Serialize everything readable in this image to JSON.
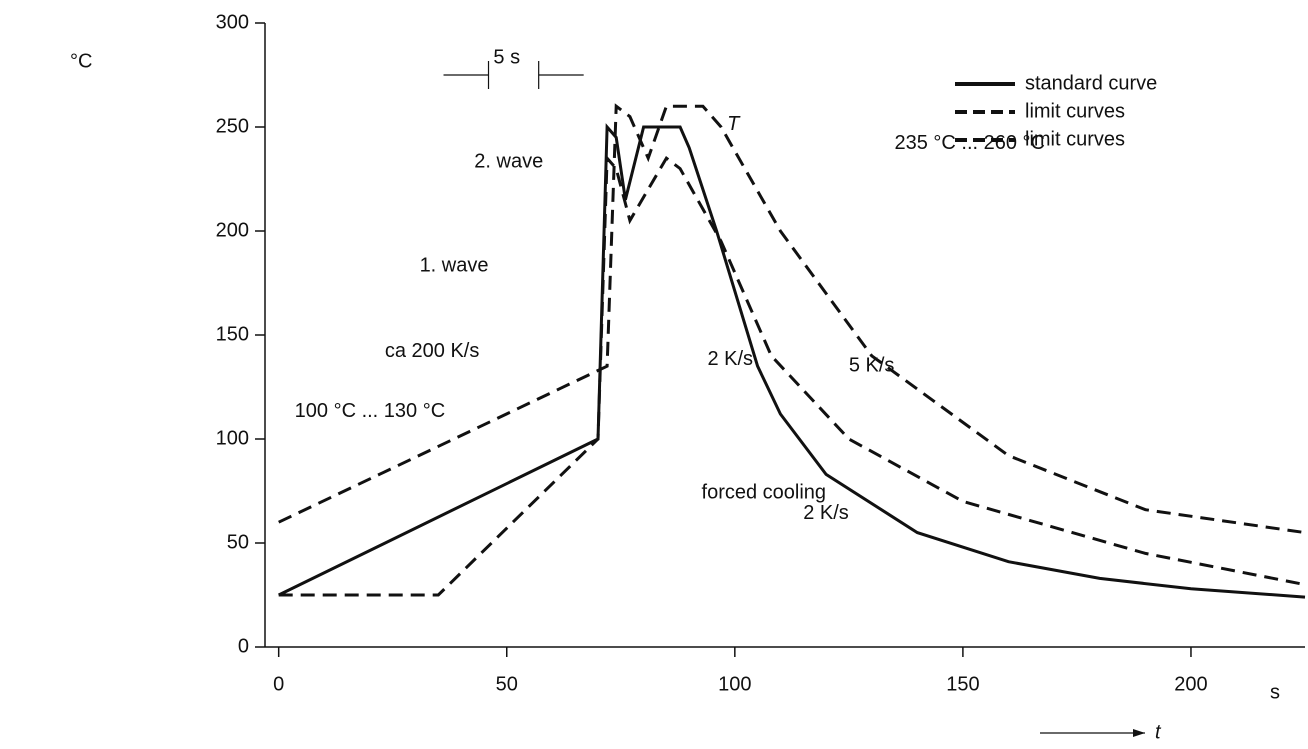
{
  "chart_data": {
    "type": "line",
    "y_unit": "°C",
    "x_label": "t",
    "x_unit": "s",
    "xlim": [
      -3,
      225
    ],
    "ylim": [
      0,
      300
    ],
    "xticks": [
      0,
      50,
      100,
      150,
      200
    ],
    "yticks": [
      0,
      50,
      100,
      150,
      200,
      250,
      300
    ],
    "grid": false,
    "legend_position": "upper right",
    "series": [
      {
        "name": "standard curve",
        "color": "#111111",
        "dash": "solid",
        "x": [
          0,
          70,
          72,
          74,
          76,
          80,
          88,
          90,
          96,
          105,
          110,
          120,
          140,
          160,
          180,
          200,
          225
        ],
        "values": [
          25,
          100,
          250,
          245,
          215,
          250,
          250,
          240,
          200,
          135,
          112,
          83,
          55,
          41,
          33,
          28,
          24
        ]
      },
      {
        "name": "limit curves",
        "color": "#111111",
        "dash": "dashed",
        "x": [
          0,
          72,
          74,
          77,
          81,
          85,
          93,
          97,
          110,
          130,
          160,
          190,
          225
        ],
        "values": [
          60,
          135,
          260,
          255,
          235,
          260,
          260,
          250,
          200,
          140,
          92,
          66,
          55
        ]
      },
      {
        "name": "limit curves",
        "color": "#111111",
        "dash": "dashed",
        "x": [
          0,
          35,
          70,
          72,
          74,
          77,
          85,
          88,
          97,
          108,
          125,
          150,
          190,
          225
        ],
        "values": [
          25,
          25,
          100,
          235,
          230,
          205,
          235,
          230,
          195,
          140,
          100,
          70,
          45,
          30
        ]
      }
    ],
    "annotations": [
      "5 s",
      "T",
      "235 °C ... 260 °C",
      "2. wave",
      "1. wave",
      "ca 200 K/s",
      "2 K/s",
      "5 K/s",
      "100 °C ... 130 °C",
      "2 K/s",
      "forced cooling"
    ]
  }
}
